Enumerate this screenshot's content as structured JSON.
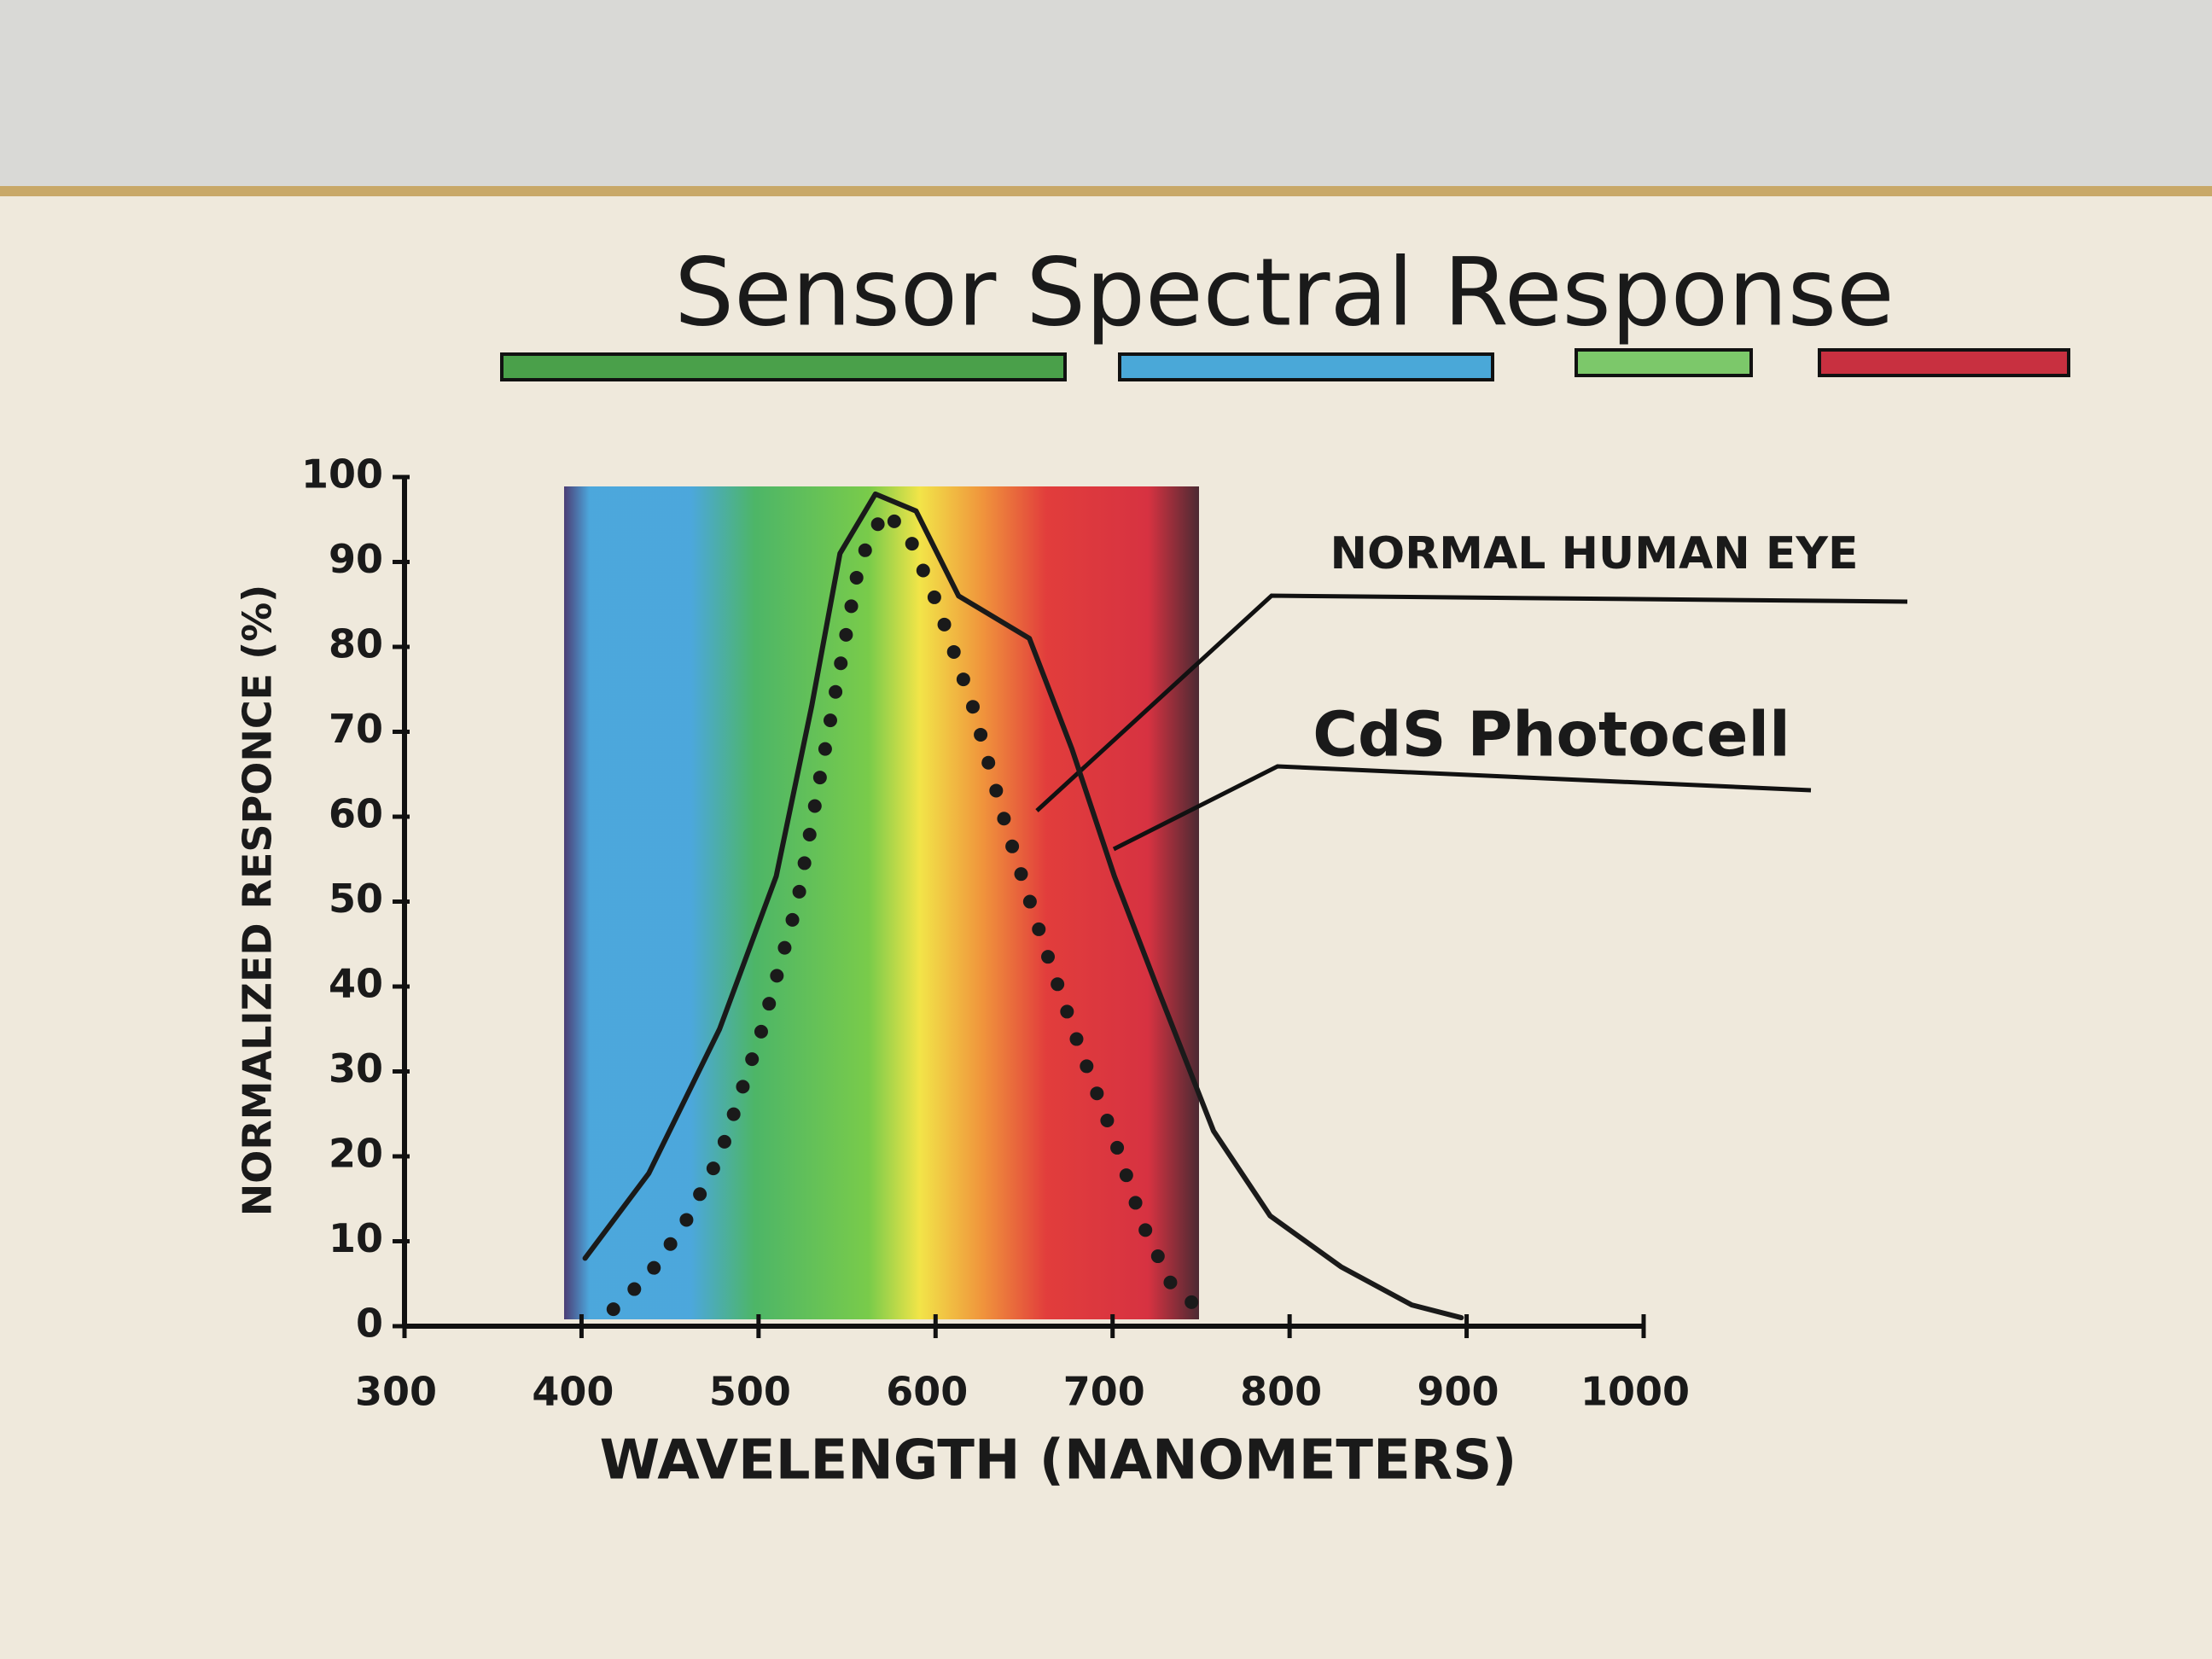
{
  "chart_data": {
    "type": "line",
    "title": "Sensor Spectral Response",
    "x_label": "WAVELENGTH (NANOMETERS)",
    "y_label": "NORMALIZED RESPONCE (%)",
    "xlim": [
      300,
      1000
    ],
    "xticks": [
      300,
      400,
      500,
      600,
      700,
      800,
      900,
      1000
    ],
    "ylim": [
      0,
      100
    ],
    "yticks": [
      0,
      10,
      20,
      30,
      40,
      50,
      60,
      70,
      80,
      90,
      100
    ],
    "series": [
      {
        "name": "NORMAL HUMAN EYE",
        "color": "#1a1a1a",
        "dash": "dotted",
        "x": [
          418,
          438,
          458,
          478,
          502,
          522,
          542,
          557,
          571,
          585,
          601,
          621,
          641,
          661,
          681,
          701,
          717,
          733,
          749
        ],
        "values": [
          2,
          6,
          12,
          20,
          35,
          50,
          73,
          90,
          96,
          93,
          85,
          73,
          58,
          45,
          33,
          22,
          12,
          5,
          2
        ]
      },
      {
        "name": "CdS Photocell",
        "color": "#1a1a1a",
        "dash": "solid",
        "x": [
          402,
          438,
          478,
          510,
          530,
          546,
          566,
          589,
          613,
          653,
          677,
          701,
          725,
          757,
          789,
          829,
          869,
          897
        ],
        "values": [
          8,
          18,
          35,
          53,
          73,
          91,
          98,
          96,
          86,
          81,
          68,
          53,
          40,
          23,
          13,
          7,
          2.5,
          1
        ]
      }
    ]
  }
}
